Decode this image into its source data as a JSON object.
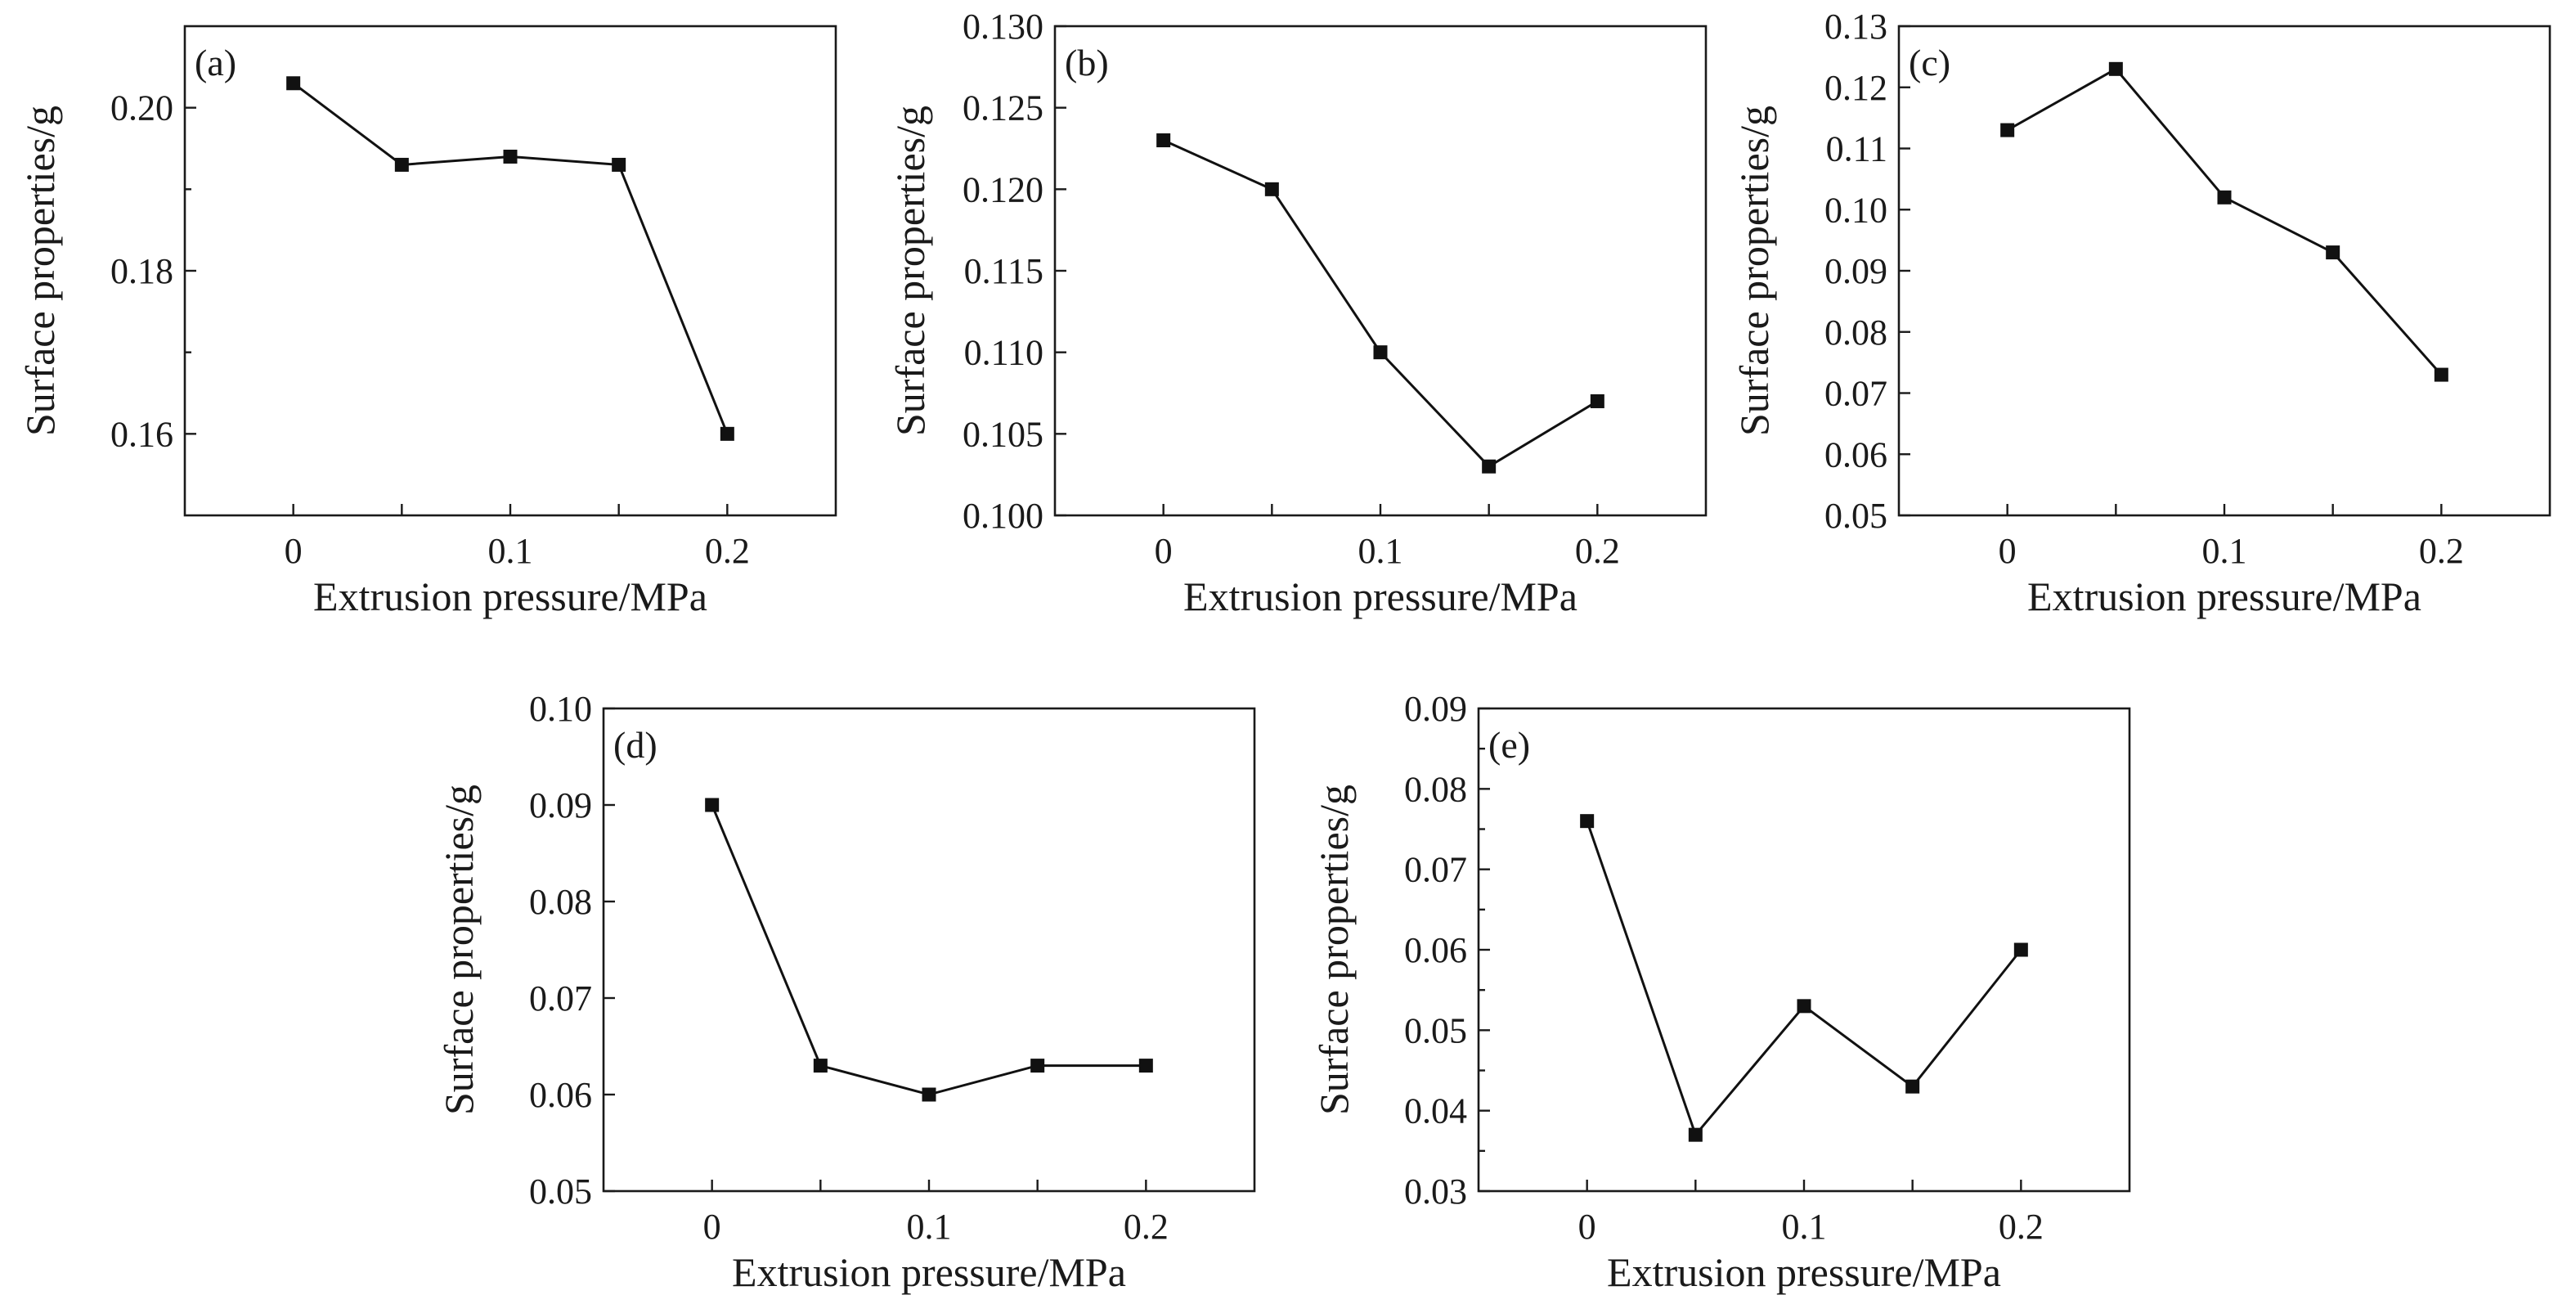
{
  "chart_data": [
    {
      "type": "line",
      "panel_label": "(a)",
      "xlabel": "Extrusion pressure/MPa",
      "ylabel": "Surface properties/g",
      "xlim": [
        -0.05,
        0.25
      ],
      "ylim": [
        0.15,
        0.21
      ],
      "xticks": [
        0,
        0.05,
        0.1,
        0.15,
        0.2
      ],
      "xtick_labels": [
        "0",
        "",
        "0.1",
        "",
        "0.2"
      ],
      "yticks": [
        0.16,
        0.17,
        0.18,
        0.19,
        0.2
      ],
      "ytick_labels": [
        "0.16",
        "",
        "0.18",
        "",
        "0.20"
      ],
      "x": [
        0,
        0.05,
        0.1,
        0.15,
        0.2
      ],
      "y": [
        0.203,
        0.193,
        0.194,
        0.193,
        0.16
      ],
      "grid": false,
      "marker": "square"
    },
    {
      "type": "line",
      "panel_label": "(b)",
      "xlabel": "Extrusion pressure/MPa",
      "ylabel": "Surface properties/g",
      "xlim": [
        -0.05,
        0.25
      ],
      "ylim": [
        0.1,
        0.13
      ],
      "xticks": [
        0,
        0.05,
        0.1,
        0.15,
        0.2
      ],
      "xtick_labels": [
        "0",
        "",
        "0.1",
        "",
        "0.2"
      ],
      "yticks": [
        0.1,
        0.105,
        0.11,
        0.115,
        0.12,
        0.125,
        0.13
      ],
      "ytick_labels": [
        "0.100",
        "0.105",
        "0.110",
        "0.115",
        "0.120",
        "0.125",
        "0.130"
      ],
      "x": [
        0,
        0.05,
        0.1,
        0.15,
        0.2
      ],
      "y": [
        0.123,
        0.12,
        0.11,
        0.103,
        0.107
      ],
      "grid": false,
      "marker": "square"
    },
    {
      "type": "line",
      "panel_label": "(c)",
      "xlabel": "Extrusion pressure/MPa",
      "ylabel": "Surface properties/g",
      "xlim": [
        -0.05,
        0.25
      ],
      "ylim": [
        0.05,
        0.13
      ],
      "xticks": [
        0,
        0.05,
        0.1,
        0.15,
        0.2
      ],
      "xtick_labels": [
        "0",
        "",
        "0.1",
        "",
        "0.2"
      ],
      "yticks": [
        0.05,
        0.06,
        0.07,
        0.08,
        0.09,
        0.1,
        0.11,
        0.12,
        0.13
      ],
      "ytick_labels": [
        "0.05",
        "0.06",
        "0.07",
        "0.08",
        "0.09",
        "0.10",
        "0.11",
        "0.12",
        "0.13"
      ],
      "x": [
        0,
        0.05,
        0.1,
        0.15,
        0.2
      ],
      "y": [
        0.113,
        0.123,
        0.102,
        0.093,
        0.073
      ],
      "grid": false,
      "marker": "square"
    },
    {
      "type": "line",
      "panel_label": "(d)",
      "xlabel": "Extrusion pressure/MPa",
      "ylabel": "Surface properties/g",
      "xlim": [
        -0.05,
        0.25
      ],
      "ylim": [
        0.05,
        0.1
      ],
      "xticks": [
        0,
        0.05,
        0.1,
        0.15,
        0.2
      ],
      "xtick_labels": [
        "0",
        "",
        "0.1",
        "",
        "0.2"
      ],
      "yticks": [
        0.05,
        0.06,
        0.07,
        0.08,
        0.09,
        0.1
      ],
      "ytick_labels": [
        "0.05",
        "0.06",
        "0.07",
        "0.08",
        "0.09",
        "0.10"
      ],
      "x": [
        0,
        0.05,
        0.1,
        0.15,
        0.2
      ],
      "y": [
        0.09,
        0.063,
        0.06,
        0.063,
        0.063
      ],
      "grid": false,
      "marker": "square"
    },
    {
      "type": "line",
      "panel_label": "(e)",
      "xlabel": "Extrusion pressure/MPa",
      "ylabel": "Surface properties/g",
      "xlim": [
        -0.05,
        0.25
      ],
      "ylim": [
        0.03,
        0.09
      ],
      "xticks": [
        0,
        0.05,
        0.1,
        0.15,
        0.2
      ],
      "xtick_labels": [
        "0",
        "",
        "0.1",
        "",
        "0.2"
      ],
      "yticks": [
        0.03,
        0.035,
        0.04,
        0.045,
        0.05,
        0.055,
        0.06,
        0.065,
        0.07,
        0.075,
        0.08,
        0.085,
        0.09
      ],
      "ytick_labels": [
        "0.03",
        "",
        "0.04",
        "",
        "0.05",
        "",
        "0.06",
        "",
        "0.07",
        "",
        "0.08",
        "",
        "0.09"
      ],
      "x": [
        0,
        0.05,
        0.1,
        0.15,
        0.2
      ],
      "y": [
        0.076,
        0.037,
        0.053,
        0.043,
        0.06
      ],
      "grid": false,
      "marker": "square"
    }
  ]
}
